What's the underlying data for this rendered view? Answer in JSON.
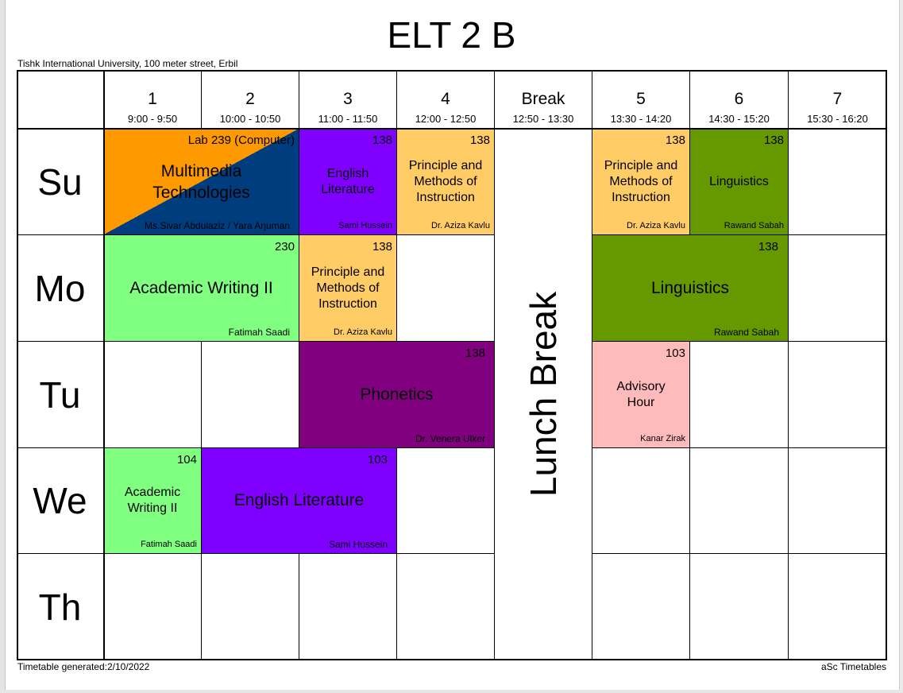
{
  "title": "ELT 2 B",
  "address": "Tishk International University, 100 meter street, Erbil",
  "footer": {
    "generated": "Timetable generated:2/10/2022",
    "brand": "aSc Timetables"
  },
  "colors": {
    "orange": "#ff9900",
    "navy": "#003d7f",
    "violet": "#8000ff",
    "peach": "#ffcc66",
    "olive": "#669900",
    "lightgreen": "#80ff80",
    "purple": "#800080",
    "pink": "#ffbbbb"
  },
  "periods": [
    {
      "label": "1",
      "time": "9:00 - 9:50"
    },
    {
      "label": "2",
      "time": "10:00 - 10:50"
    },
    {
      "label": "3",
      "time": "11:00 - 11:50"
    },
    {
      "label": "4",
      "time": "12:00 - 12:50"
    },
    {
      "label": "Break",
      "time": "12:50 - 13:30"
    },
    {
      "label": "5",
      "time": "13:30 - 14:20"
    },
    {
      "label": "6",
      "time": "14:30 - 15:20"
    },
    {
      "label": "7",
      "time": "15:30 - 16:20"
    }
  ],
  "days": [
    "Su",
    "Mo",
    "Tu",
    "We",
    "Th"
  ],
  "lunch_label": "Lunch Break",
  "lessons": {
    "su_multimedia": {
      "subject": "Multimedia Technologies",
      "room": "Lab 239 (Computer)",
      "teacher": "Ms.Sivar Abdulaziz / Yara Arjuman"
    },
    "su_english_lit": {
      "subject": "English Literature",
      "room": "138",
      "teacher": "Sami Hussein"
    },
    "su_principle_p4": {
      "subject": "Principle and Methods of Instruction",
      "room": "138",
      "teacher": "Dr. Aziza Kavlu"
    },
    "su_principle_p5": {
      "subject": "Principle and Methods of Instruction",
      "room": "138",
      "teacher": "Dr. Aziza Kavlu"
    },
    "su_linguistics": {
      "subject": "Linguistics",
      "room": "138",
      "teacher": "Rawand Sabah"
    },
    "mo_academic_writing": {
      "subject": "Academic Writing II",
      "room": "230",
      "teacher": "Fatimah Saadi"
    },
    "mo_principle": {
      "subject": "Principle and Methods of Instruction",
      "room": "138",
      "teacher": "Dr. Aziza Kavlu"
    },
    "mo_linguistics": {
      "subject": "Linguistics",
      "room": "138",
      "teacher": "Rawand Sabah"
    },
    "tu_phonetics": {
      "subject": "Phonetics",
      "room": "138",
      "teacher": "Dr. Venera Ulker"
    },
    "tu_advisory": {
      "subject": "Advisory Hour",
      "room": "103",
      "teacher": "Kanar Zirak"
    },
    "we_academic_writing": {
      "subject": "Academic Writing II",
      "room": "104",
      "teacher": "Fatimah Saadi"
    },
    "we_english_lit": {
      "subject": "English Literature",
      "room": "103",
      "teacher": "Sami Hussein"
    }
  }
}
